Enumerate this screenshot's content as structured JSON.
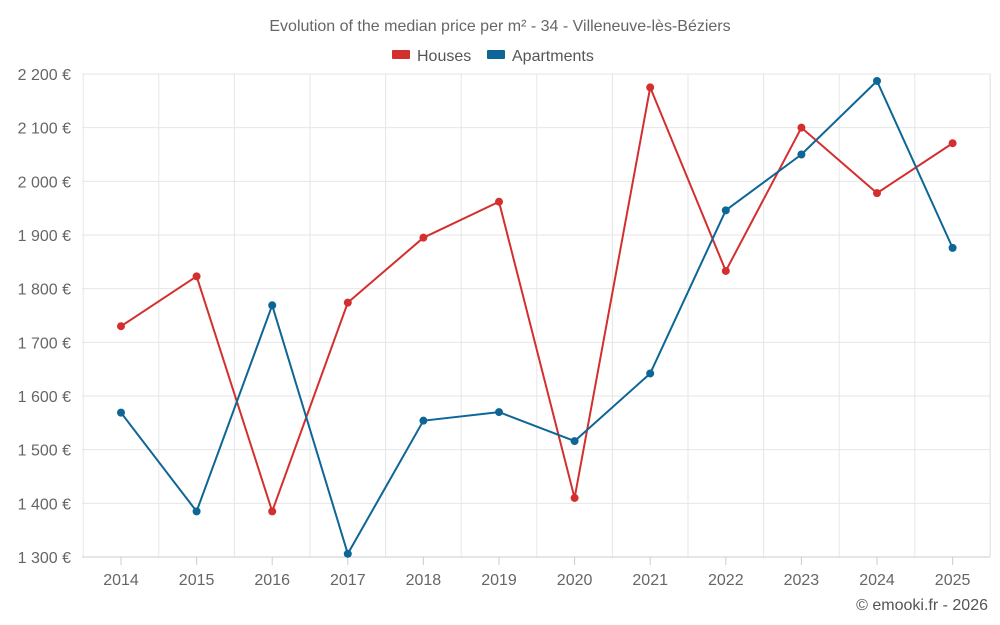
{
  "chart_data": {
    "type": "line",
    "title": "Evolution of the median price per m² - 34 - Villeneuve-lès-Béziers",
    "categories": [
      "2014",
      "2015",
      "2016",
      "2017",
      "2018",
      "2019",
      "2020",
      "2021",
      "2022",
      "2023",
      "2024",
      "2025"
    ],
    "series": [
      {
        "name": "Houses",
        "color": "#d32f2f",
        "values": [
          1730,
          1823,
          1385,
          1774,
          1895,
          1962,
          1410,
          2175,
          1833,
          2100,
          1978,
          2071
        ]
      },
      {
        "name": "Apartments",
        "color": "#0d6696",
        "values": [
          1569,
          1385,
          1769,
          1306,
          1554,
          1570,
          1516,
          1642,
          1946,
          2050,
          2187,
          1876
        ]
      }
    ],
    "ylim": [
      1300,
      2200
    ],
    "yticks": [
      1300,
      1400,
      1500,
      1600,
      1700,
      1800,
      1900,
      2000,
      2100,
      2200
    ],
    "ytick_labels": [
      "1 300 €",
      "1 400 €",
      "1 500 €",
      "1 600 €",
      "1 700 €",
      "1 800 €",
      "1 900 €",
      "2 000 €",
      "2 100 €",
      "2 200 €"
    ],
    "grid": true,
    "legend_position": "top-center",
    "credit": "© emooki.fr - 2026"
  }
}
